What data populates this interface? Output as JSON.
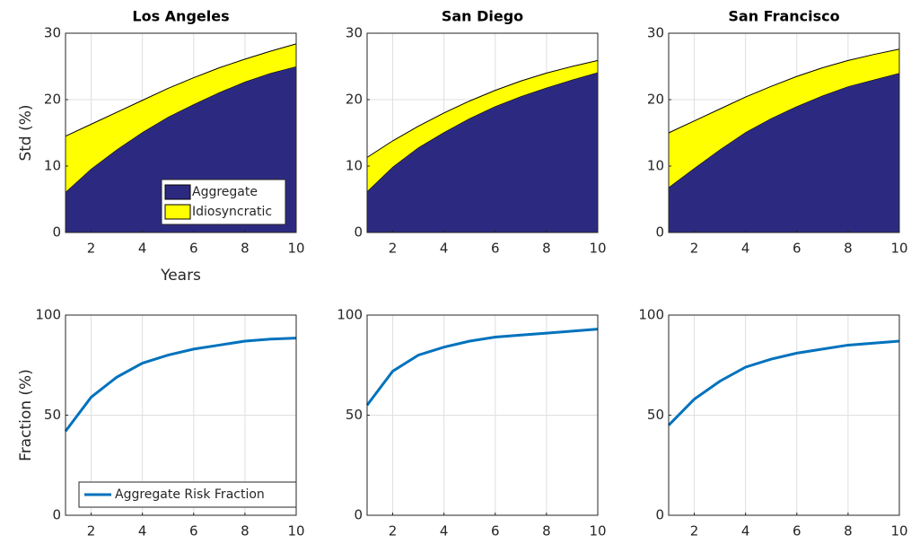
{
  "chart_data": [
    {
      "type": "area",
      "title": "Los Angeles",
      "xlabel": "Years",
      "ylabel": "Std (%)",
      "x": [
        1,
        2,
        3,
        4,
        5,
        6,
        7,
        8,
        9,
        10
      ],
      "series": [
        {
          "name": "Aggregate",
          "color": "#2c2a80",
          "values": [
            6.1,
            9.6,
            12.5,
            15.1,
            17.4,
            19.3,
            21.1,
            22.7,
            24.0,
            25.0
          ]
        },
        {
          "name": "Idiosyncratic",
          "color": "#ffff00",
          "values": [
            8.4,
            6.7,
            5.6,
            4.8,
            4.3,
            4.0,
            3.7,
            3.4,
            3.3,
            3.4
          ]
        }
      ],
      "xlim": [
        1,
        10
      ],
      "ylim": [
        0,
        30
      ],
      "xticks": [
        2,
        4,
        6,
        8,
        10
      ],
      "yticks": [
        0,
        10,
        20,
        30
      ],
      "grid": true,
      "legend": "southeast"
    },
    {
      "type": "area",
      "title": "San Diego",
      "x": [
        1,
        2,
        3,
        4,
        5,
        6,
        7,
        8,
        9,
        10
      ],
      "series": [
        {
          "color": "#2c2a80",
          "values": [
            6.2,
            9.9,
            12.8,
            15.1,
            17.2,
            19.0,
            20.5,
            21.8,
            23.0,
            24.1
          ]
        },
        {
          "color": "#ffff00",
          "values": [
            5.1,
            3.9,
            3.2,
            2.9,
            2.6,
            2.4,
            2.3,
            2.2,
            2.0,
            1.8
          ]
        }
      ],
      "xlim": [
        1,
        10
      ],
      "ylim": [
        0,
        30
      ],
      "xticks": [
        2,
        4,
        6,
        8,
        10
      ],
      "yticks": [
        0,
        10,
        20,
        30
      ],
      "grid": true,
      "legend": false
    },
    {
      "type": "area",
      "title": "San Francisco",
      "x": [
        1,
        2,
        3,
        4,
        5,
        6,
        7,
        8,
        9,
        10
      ],
      "series": [
        {
          "color": "#2c2a80",
          "values": [
            6.8,
            9.7,
            12.5,
            15.1,
            17.2,
            19.0,
            20.6,
            22.0,
            23.0,
            24.0
          ]
        },
        {
          "color": "#ffff00",
          "values": [
            8.2,
            7.1,
            6.1,
            5.3,
            4.8,
            4.5,
            4.2,
            3.9,
            3.8,
            3.6
          ]
        }
      ],
      "xlim": [
        1,
        10
      ],
      "ylim": [
        0,
        30
      ],
      "xticks": [
        2,
        4,
        6,
        8,
        10
      ],
      "yticks": [
        0,
        10,
        20,
        30
      ],
      "grid": true,
      "legend": false
    },
    {
      "type": "line",
      "ylabel": "Fraction (%)",
      "x": [
        1,
        2,
        3,
        4,
        5,
        6,
        7,
        8,
        9,
        10
      ],
      "series": [
        {
          "name": "Aggregate Risk Fraction",
          "color": "#0072bd",
          "values": [
            42,
            59,
            69,
            76,
            80,
            83,
            85,
            87,
            88,
            88.5
          ]
        }
      ],
      "xlim": [
        1,
        10
      ],
      "ylim": [
        0,
        100
      ],
      "xticks": [
        2,
        4,
        6,
        8,
        10
      ],
      "yticks": [
        0,
        50,
        100
      ],
      "grid": true,
      "legend": "southwest"
    },
    {
      "type": "line",
      "x": [
        1,
        2,
        3,
        4,
        5,
        6,
        7,
        8,
        9,
        10
      ],
      "series": [
        {
          "color": "#0072bd",
          "values": [
            55,
            72,
            80,
            84,
            87,
            89,
            90,
            91,
            92,
            93
          ]
        }
      ],
      "xlim": [
        1,
        10
      ],
      "ylim": [
        0,
        100
      ],
      "xticks": [
        2,
        4,
        6,
        8,
        10
      ],
      "yticks": [
        0,
        50,
        100
      ],
      "grid": true,
      "legend": false
    },
    {
      "type": "line",
      "x": [
        1,
        2,
        3,
        4,
        5,
        6,
        7,
        8,
        9,
        10
      ],
      "series": [
        {
          "color": "#0072bd",
          "values": [
            45,
            58,
            67,
            74,
            78,
            81,
            83,
            85,
            86,
            87
          ]
        }
      ],
      "xlim": [
        1,
        10
      ],
      "ylim": [
        0,
        100
      ],
      "xticks": [
        2,
        4,
        6,
        8,
        10
      ],
      "yticks": [
        0,
        50,
        100
      ],
      "grid": true,
      "legend": false
    }
  ]
}
